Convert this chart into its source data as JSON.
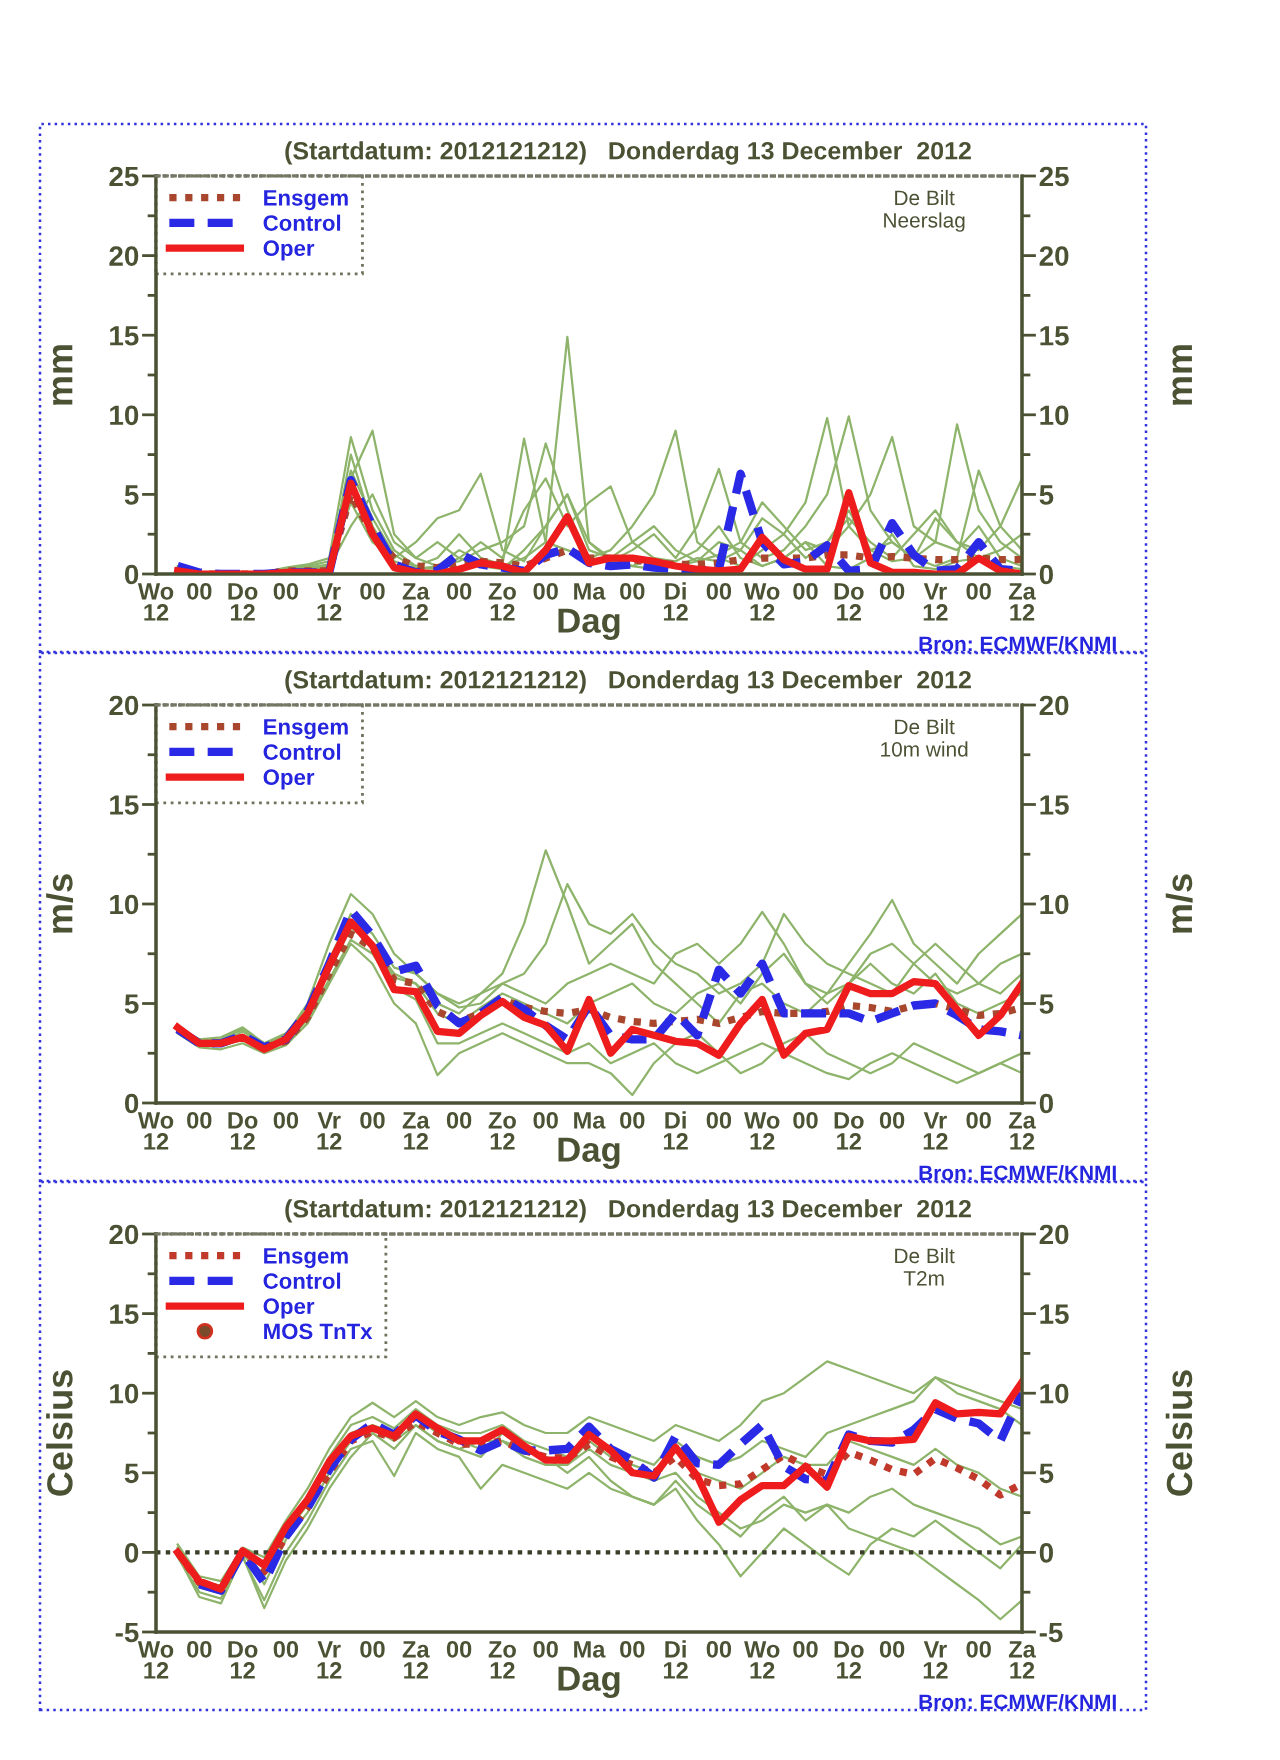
{
  "chart_data": [
    {
      "type": "line",
      "title": "(Startdatum: 2012121212)   Donderdag 13 December  2012",
      "xlabel": "Dag",
      "ylabel": "mm",
      "y2label": "mm",
      "annotations": [
        "De Bilt\nNeerslag",
        "Bron: ECMWF/KNMI"
      ],
      "xlim": [
        "2012-12-12T12:00",
        "2012-12-22T12:00"
      ],
      "xticks": [
        {
          "value": "2012-12-12T12:00",
          "label": "Wo\n12"
        },
        {
          "value": "2012-12-13T00:00",
          "label": "00"
        },
        {
          "value": "2012-12-13T12:00",
          "label": "Do\n12"
        },
        {
          "value": "2012-12-14T00:00",
          "label": "00"
        },
        {
          "value": "2012-12-14T12:00",
          "label": "Vr\n12"
        },
        {
          "value": "2012-12-15T00:00",
          "label": "00"
        },
        {
          "value": "2012-12-15T12:00",
          "label": "Za\n12"
        },
        {
          "value": "2012-12-16T00:00",
          "label": "00"
        },
        {
          "value": "2012-12-16T12:00",
          "label": "Zo\n12"
        },
        {
          "value": "2012-12-17T00:00",
          "label": "00"
        },
        {
          "value": "2012-12-17T12:00",
          "label": "Ma"
        },
        {
          "value": "2012-12-18T00:00",
          "label": "00"
        },
        {
          "value": "2012-12-18T12:00",
          "label": "Di\n12"
        },
        {
          "value": "2012-12-19T00:00",
          "label": "00"
        },
        {
          "value": "2012-12-19T12:00",
          "label": "Wo\n12"
        },
        {
          "value": "2012-12-20T00:00",
          "label": "00"
        },
        {
          "value": "2012-12-20T12:00",
          "label": "Do\n12"
        },
        {
          "value": "2012-12-21T00:00",
          "label": "00"
        },
        {
          "value": "2012-12-21T12:00",
          "label": "Vr\n12"
        },
        {
          "value": "2012-12-22T00:00",
          "label": "00"
        },
        {
          "value": "2012-12-22T12:00",
          "label": "Za\n12"
        }
      ],
      "ylim": [
        0,
        25
      ],
      "yticks": [
        0,
        {
          "value": 2.5,
          "label": null
        },
        5,
        {
          "value": 7.5,
          "label": null
        },
        10,
        {
          "value": 12.5,
          "label": null
        },
        15,
        {
          "value": 17.5,
          "label": null
        },
        20,
        {
          "value": 22.5,
          "label": null
        },
        25
      ],
      "y2lim": [
        0,
        25
      ],
      "y2ticks": [
        0,
        {
          "value": 2.5,
          "label": null
        },
        5,
        {
          "value": 7.5,
          "label": null
        },
        10,
        {
          "value": 12.5,
          "label": null
        },
        15,
        {
          "value": 17.5,
          "label": null
        },
        20,
        {
          "value": 22.5,
          "label": null
        },
        25
      ],
      "legend": "top left",
      "x": [
        "2012-12-12T18:00",
        "2012-12-13T00:00",
        "2012-12-13T06:00",
        "2012-12-13T12:00",
        "2012-12-13T18:00",
        "2012-12-14T00:00",
        "2012-12-14T06:00",
        "2012-12-14T12:00",
        "2012-12-14T18:00",
        "2012-12-15T00:00",
        "2012-12-15T06:00",
        "2012-12-15T12:00",
        "2012-12-15T18:00",
        "2012-12-16T00:00",
        "2012-12-16T06:00",
        "2012-12-16T12:00",
        "2012-12-16T18:00",
        "2012-12-17T00:00",
        "2012-12-17T06:00",
        "2012-12-17T12:00",
        "2012-12-17T18:00",
        "2012-12-18T00:00",
        "2012-12-18T06:00",
        "2012-12-18T12:00",
        "2012-12-18T18:00",
        "2012-12-19T00:00",
        "2012-12-19T06:00",
        "2012-12-19T12:00",
        "2012-12-19T18:00",
        "2012-12-20T00:00",
        "2012-12-20T06:00",
        "2012-12-20T12:00",
        "2012-12-20T18:00",
        "2012-12-21T00:00",
        "2012-12-21T06:00",
        "2012-12-21T12:00",
        "2012-12-21T18:00",
        "2012-12-22T00:00",
        "2012-12-22T06:00",
        "2012-12-22T12:00"
      ],
      "series": [
        {
          "color": "#8db46a",
          "line_style": "solid",
          "values": [
            0.3,
            0,
            0,
            0,
            0,
            0.2,
            0.3,
            0.3,
            7.5,
            3.0,
            0.8,
            0.3,
            0.5,
            1.5,
            0.8,
            0.5,
            1.0,
            2.0,
            14.9,
            2.0,
            0.8,
            0.5,
            0.3,
            0.5,
            1.0,
            0.8,
            1.5,
            0.5,
            1.0,
            2.0,
            0.5,
            0.3,
            1.0,
            2.5,
            0.5,
            0.3,
            0.8,
            1.0,
            0.5,
            0.3
          ]
        },
        {
          "color": "#8db46a",
          "line_style": "solid",
          "values": [
            0.5,
            0.1,
            0,
            0,
            0,
            0.3,
            0.5,
            0.8,
            6.0,
            9.0,
            2.5,
            1.0,
            2.0,
            1.0,
            0.5,
            0.3,
            1.5,
            3.0,
            5.0,
            1.5,
            1.0,
            2.0,
            3.0,
            1.5,
            0.8,
            2.0,
            1.5,
            3.5,
            2.5,
            4.5,
            9.8,
            3.0,
            1.5,
            2.0,
            1.0,
            3.5,
            2.0,
            1.0,
            1.5,
            2.5
          ]
        },
        {
          "color": "#8db46a",
          "line_style": "solid",
          "values": [
            0.2,
            0,
            0,
            0,
            0.1,
            0.4,
            0.6,
            1.0,
            8.6,
            4.0,
            1.5,
            0.5,
            1.0,
            2.5,
            1.0,
            0.6,
            8.5,
            2.0,
            1.5,
            1.0,
            1.5,
            3.0,
            5.0,
            9.0,
            2.0,
            1.0,
            0.5,
            1.5,
            2.5,
            1.0,
            2.0,
            4.0,
            1.5,
            0.8,
            1.0,
            2.0,
            1.5,
            3.0,
            1.0,
            0.5
          ]
        },
        {
          "color": "#8db46a",
          "line_style": "solid",
          "values": [
            null,
            null,
            null,
            0,
            0,
            0.2,
            0.3,
            0.5,
            4.5,
            2.0,
            1.0,
            2.0,
            3.5,
            4.0,
            6.3,
            1.5,
            0.8,
            3.0,
            5.0,
            2.0,
            1.0,
            0.5,
            1.0,
            0.8,
            1.5,
            3.0,
            1.0,
            0.5,
            1.0,
            2.0,
            1.5,
            3.0,
            5.0,
            8.6,
            3.0,
            2.0,
            9.4,
            4.0,
            2.0,
            1.0
          ]
        },
        {
          "color": "#8db46a",
          "line_style": "solid",
          "values": [
            0.2,
            0,
            0,
            0,
            0,
            0.1,
            0.2,
            0.4,
            3.0,
            5.0,
            2.0,
            1.0,
            0.5,
            0.8,
            1.5,
            2.0,
            3.0,
            8.2,
            4.0,
            1.0,
            0.8,
            1.5,
            2.5,
            1.0,
            3.0,
            6.6,
            2.0,
            1.0,
            1.5,
            3.0,
            5.0,
            9.9,
            4.0,
            2.0,
            1.0,
            0.5,
            1.0,
            6.5,
            3.0,
            1.5
          ]
        },
        {
          "color": "#8db46a",
          "line_style": "solid",
          "values": [
            0.3,
            0.1,
            0,
            0,
            0,
            0.2,
            0.4,
            0.6,
            6.5,
            3.5,
            1.2,
            0.4,
            0.3,
            1.0,
            2.0,
            1.0,
            4.0,
            6.0,
            3.0,
            4.5,
            5.5,
            2.0,
            1.0,
            0.5,
            0.8,
            1.2,
            2.0,
            4.5,
            3.0,
            1.5,
            2.0,
            3.5,
            2.0,
            1.0,
            2.5,
            4.0,
            2.0,
            1.5,
            3.0,
            6.0
          ]
        },
        {
          "name": "Ensgem",
          "color": "#a8472e",
          "line_style": "dotted",
          "values": [
            0.2,
            0,
            0,
            0,
            0,
            0.2,
            0.2,
            0.2,
            5.0,
            2.5,
            1.0,
            0.5,
            0.4,
            0.7,
            0.8,
            0.7,
            0.5,
            1.0,
            1.5,
            1.0,
            1.0,
            0.9,
            0.7,
            0.6,
            0.6,
            0.7,
            0.9,
            1.0,
            1.0,
            1.0,
            1.2,
            1.2,
            1.0,
            1.1,
            1.0,
            0.9,
            0.9,
            1.0,
            0.9,
            0.9
          ]
        },
        {
          "name": "Control",
          "color": "#2a2ae6",
          "line_style": "dashed",
          "values": [
            0.5,
            0.1,
            0,
            0,
            0,
            0.1,
            0.1,
            0.1,
            5.9,
            3.0,
            0.6,
            0.1,
            0.2,
            1.3,
            0.6,
            0.4,
            0.2,
            1.2,
            1.6,
            0.7,
            0.5,
            0.6,
            0.4,
            0.3,
            0.2,
            0.3,
            6.3,
            2.0,
            0.6,
            0.8,
            1.8,
            0.2,
            0.3,
            3.2,
            1.2,
            0.2,
            0.3,
            2.0,
            0.3,
            0.2
          ]
        },
        {
          "name": "Oper",
          "color": "#ee1c1c",
          "line_style": "solid",
          "values": [
            0.2,
            0,
            0,
            0,
            0,
            0.1,
            0.1,
            0.1,
            5.7,
            2.5,
            0.4,
            0.1,
            0,
            0.3,
            0.7,
            0.5,
            0.1,
            1.5,
            3.6,
            0.7,
            1.0,
            1.0,
            0.8,
            0.5,
            0.3,
            0.2,
            0.3,
            2.3,
            0.9,
            0.3,
            0.3,
            5.1,
            0.7,
            0.1,
            0.1,
            0,
            0,
            1.0,
            0.2,
            0
          ]
        }
      ]
    },
    {
      "type": "line",
      "title": "(Startdatum: 2012121212)   Donderdag 13 December  2012",
      "xlabel": "Dag",
      "ylabel": "m/s",
      "y2label": "m/s",
      "annotations": [
        "De Bilt\n10m wind",
        "Bron: ECMWF/KNMI"
      ],
      "xlim": [
        "2012-12-12T12:00",
        "2012-12-22T12:00"
      ],
      "xticks": [
        {
          "value": "2012-12-12T12:00",
          "label": "Wo\n12"
        },
        {
          "value": "2012-12-13T00:00",
          "label": "00"
        },
        {
          "value": "2012-12-13T12:00",
          "label": "Do\n12"
        },
        {
          "value": "2012-12-14T00:00",
          "label": "00"
        },
        {
          "value": "2012-12-14T12:00",
          "label": "Vr\n12"
        },
        {
          "value": "2012-12-15T00:00",
          "label": "00"
        },
        {
          "value": "2012-12-15T12:00",
          "label": "Za\n12"
        },
        {
          "value": "2012-12-16T00:00",
          "label": "00"
        },
        {
          "value": "2012-12-16T12:00",
          "label": "Zo\n12"
        },
        {
          "value": "2012-12-17T00:00",
          "label": "00"
        },
        {
          "value": "2012-12-17T12:00",
          "label": "Ma"
        },
        {
          "value": "2012-12-18T00:00",
          "label": "00"
        },
        {
          "value": "2012-12-18T12:00",
          "label": "Di\n12"
        },
        {
          "value": "2012-12-19T00:00",
          "label": "00"
        },
        {
          "value": "2012-12-19T12:00",
          "label": "Wo\n12"
        },
        {
          "value": "2012-12-20T00:00",
          "label": "00"
        },
        {
          "value": "2012-12-20T12:00",
          "label": "Do\n12"
        },
        {
          "value": "2012-12-21T00:00",
          "label": "00"
        },
        {
          "value": "2012-12-21T12:00",
          "label": "Vr\n12"
        },
        {
          "value": "2012-12-22T00:00",
          "label": "00"
        },
        {
          "value": "2012-12-22T12:00",
          "label": "Za\n12"
        }
      ],
      "ylim": [
        0,
        20
      ],
      "yticks": [
        0,
        {
          "value": 2.5,
          "label": null
        },
        5,
        {
          "value": 7.5,
          "label": null
        },
        10,
        {
          "value": 12.5,
          "label": null
        },
        15,
        {
          "value": 17.5,
          "label": null
        },
        20
      ],
      "y2lim": [
        0,
        20
      ],
      "y2ticks": [
        0,
        {
          "value": 2.5,
          "label": null
        },
        5,
        {
          "value": 7.5,
          "label": null
        },
        10,
        {
          "value": 12.5,
          "label": null
        },
        15,
        {
          "value": 17.5,
          "label": null
        },
        20
      ],
      "legend": "top left",
      "x": [
        "2012-12-12T18:00",
        "2012-12-13T00:00",
        "2012-12-13T06:00",
        "2012-12-13T12:00",
        "2012-12-13T18:00",
        "2012-12-14T00:00",
        "2012-12-14T06:00",
        "2012-12-14T12:00",
        "2012-12-14T18:00",
        "2012-12-15T00:00",
        "2012-12-15T06:00",
        "2012-12-15T12:00",
        "2012-12-15T18:00",
        "2012-12-16T00:00",
        "2012-12-16T06:00",
        "2012-12-16T12:00",
        "2012-12-16T18:00",
        "2012-12-17T00:00",
        "2012-12-17T06:00",
        "2012-12-17T12:00",
        "2012-12-17T18:00",
        "2012-12-18T00:00",
        "2012-12-18T06:00",
        "2012-12-18T12:00",
        "2012-12-18T18:00",
        "2012-12-19T00:00",
        "2012-12-19T06:00",
        "2012-12-19T12:00",
        "2012-12-19T18:00",
        "2012-12-20T00:00",
        "2012-12-20T06:00",
        "2012-12-20T12:00",
        "2012-12-20T18:00",
        "2012-12-21T00:00",
        "2012-12-21T06:00",
        "2012-12-21T12:00",
        "2012-12-21T18:00",
        "2012-12-22T00:00",
        "2012-12-22T06:00",
        "2012-12-22T12:00"
      ],
      "series": [
        {
          "color": "#8db46a",
          "line_style": "solid",
          "values": [
            3.8,
            3.2,
            3.3,
            3.8,
            3.0,
            3.5,
            4.8,
            7.0,
            9.0,
            8.0,
            6.5,
            6.0,
            5.0,
            4.5,
            5.5,
            6.5,
            9.0,
            12.7,
            10.0,
            7.0,
            8.0,
            9.0,
            7.0,
            6.0,
            5.0,
            4.0,
            5.5,
            6.0,
            5.0,
            4.5,
            5.5,
            6.0,
            7.0,
            6.0,
            5.5,
            6.5,
            5.0,
            4.5,
            5.0,
            5.5
          ]
        },
        {
          "color": "#8db46a",
          "line_style": "solid",
          "values": [
            3.9,
            3.1,
            3.0,
            3.6,
            2.9,
            3.4,
            5.0,
            8.0,
            10.5,
            9.5,
            7.5,
            6.5,
            5.5,
            4.8,
            5.0,
            6.0,
            5.5,
            5.0,
            6.0,
            6.5,
            7.0,
            6.5,
            6.0,
            7.5,
            8.0,
            7.0,
            8.0,
            9.6,
            8.0,
            6.0,
            5.0,
            6.0,
            7.5,
            8.0,
            7.0,
            6.0,
            5.5,
            6.0,
            7.0,
            7.5
          ]
        },
        {
          "color": "#8db46a",
          "line_style": "solid",
          "values": [
            3.5,
            2.8,
            2.7,
            3.0,
            2.5,
            2.9,
            4.0,
            6.0,
            8.0,
            7.0,
            5.0,
            4.0,
            1.4,
            2.5,
            3.0,
            3.5,
            3.0,
            2.5,
            2.0,
            2.0,
            1.5,
            0.4,
            2.0,
            3.0,
            3.5,
            2.5,
            1.5,
            2.0,
            3.0,
            3.5,
            2.5,
            2.0,
            1.5,
            2.0,
            3.0,
            2.5,
            2.0,
            1.5,
            2.0,
            2.5
          ]
        },
        {
          "color": "#8db46a",
          "line_style": "solid",
          "values": [
            3.7,
            3.0,
            3.1,
            3.4,
            2.8,
            3.2,
            4.4,
            6.6,
            8.8,
            8.0,
            6.3,
            6.0,
            4.5,
            4.0,
            4.8,
            5.5,
            5.0,
            4.5,
            4.0,
            5.0,
            5.5,
            6.0,
            5.0,
            4.5,
            5.5,
            6.0,
            5.0,
            6.5,
            7.5,
            6.0,
            5.5,
            7.0,
            8.5,
            10.2,
            8.0,
            7.0,
            6.0,
            7.5,
            8.5,
            9.5
          ]
        },
        {
          "color": "#8db46a",
          "line_style": "solid",
          "values": [
            3.6,
            2.9,
            2.9,
            3.2,
            2.7,
            3.0,
            4.2,
            6.2,
            8.2,
            7.5,
            5.8,
            5.2,
            3.0,
            3.0,
            3.5,
            4.0,
            3.5,
            3.0,
            2.5,
            3.0,
            2.0,
            2.5,
            3.0,
            2.0,
            1.5,
            2.0,
            2.5,
            3.0,
            2.5,
            2.0,
            1.5,
            1.2,
            2.0,
            2.5,
            2.0,
            1.5,
            1.0,
            1.5,
            2.0,
            1.5
          ]
        },
        {
          "color": "#8db46a",
          "line_style": "solid",
          "values": [
            3.8,
            3.1,
            3.2,
            3.7,
            3.0,
            3.4,
            4.6,
            7.2,
            9.5,
            8.5,
            6.8,
            6.5,
            5.5,
            5.0,
            5.5,
            6.0,
            6.5,
            8.0,
            11.0,
            9.0,
            8.5,
            9.5,
            8.0,
            7.0,
            6.5,
            5.5,
            6.0,
            7.0,
            9.5,
            8.0,
            7.0,
            6.5,
            6.0,
            5.5,
            7.0,
            8.0,
            7.0,
            6.0,
            5.5,
            6.5
          ]
        },
        {
          "name": "Ensgem",
          "color": "#a8472e",
          "line_style": "dotted",
          "values": [
            3.7,
            3.0,
            3.0,
            3.3,
            2.8,
            3.1,
            4.3,
            6.5,
            8.5,
            7.8,
            6.2,
            6.0,
            4.6,
            4.1,
            4.5,
            5.2,
            4.8,
            4.6,
            4.5,
            4.7,
            4.3,
            4.1,
            4.0,
            4.1,
            4.2,
            4.0,
            4.3,
            4.6,
            4.5,
            4.5,
            4.6,
            4.9,
            4.8,
            4.6,
            4.9,
            5.0,
            4.7,
            4.4,
            4.5,
            4.8
          ]
        },
        {
          "name": "Control",
          "color": "#2a2ae6",
          "line_style": "dashed",
          "values": [
            3.7,
            3.0,
            3.0,
            3.4,
            2.8,
            3.2,
            4.6,
            7.0,
            9.7,
            8.4,
            6.6,
            6.9,
            4.9,
            4.0,
            4.5,
            5.3,
            4.7,
            3.9,
            3.2,
            4.9,
            3.4,
            3.2,
            3.2,
            4.5,
            3.4,
            6.7,
            5.5,
            7.0,
            4.5,
            4.5,
            4.5,
            4.5,
            4.1,
            4.5,
            4.9,
            5.0,
            4.4,
            3.7,
            3.6,
            3.4
          ]
        },
        {
          "name": "Oper",
          "color": "#ee1c1c",
          "line_style": "solid",
          "values": [
            3.8,
            3.0,
            3.0,
            3.3,
            2.7,
            3.2,
            4.5,
            6.9,
            9.1,
            7.9,
            5.7,
            5.6,
            3.6,
            3.5,
            4.4,
            5.1,
            4.3,
            3.9,
            2.6,
            5.2,
            2.5,
            3.7,
            3.4,
            3.1,
            3.0,
            2.4,
            4.0,
            5.2,
            2.4,
            3.5,
            3.7,
            5.9,
            5.5,
            5.5,
            6.1,
            6.0,
            4.7,
            3.4,
            4.4,
            6.0
          ]
        }
      ]
    },
    {
      "type": "line",
      "title": "(Startdatum: 2012121212)   Donderdag 13 December  2012",
      "xlabel": "Dag",
      "ylabel": "Celsius",
      "y2label": "Celsius",
      "annotations": [
        "De Bilt\nT2m",
        "Bron: ECMWF/KNMI"
      ],
      "xlim": [
        "2012-12-12T12:00",
        "2012-12-22T12:00"
      ],
      "xticks": [
        {
          "value": "2012-12-12T12:00",
          "label": "Wo\n12"
        },
        {
          "value": "2012-12-13T00:00",
          "label": "00"
        },
        {
          "value": "2012-12-13T12:00",
          "label": "Do\n12"
        },
        {
          "value": "2012-12-14T00:00",
          "label": "00"
        },
        {
          "value": "2012-12-14T12:00",
          "label": "Vr\n12"
        },
        {
          "value": "2012-12-15T00:00",
          "label": "00"
        },
        {
          "value": "2012-12-15T12:00",
          "label": "Za\n12"
        },
        {
          "value": "2012-12-16T00:00",
          "label": "00"
        },
        {
          "value": "2012-12-16T12:00",
          "label": "Zo\n12"
        },
        {
          "value": "2012-12-17T00:00",
          "label": "00"
        },
        {
          "value": "2012-12-17T12:00",
          "label": "Ma"
        },
        {
          "value": "2012-12-18T00:00",
          "label": "00"
        },
        {
          "value": "2012-12-18T12:00",
          "label": "Di\n12"
        },
        {
          "value": "2012-12-19T00:00",
          "label": "00"
        },
        {
          "value": "2012-12-19T12:00",
          "label": "Wo\n12"
        },
        {
          "value": "2012-12-20T00:00",
          "label": "00"
        },
        {
          "value": "2012-12-20T12:00",
          "label": "Do\n12"
        },
        {
          "value": "2012-12-21T00:00",
          "label": "00"
        },
        {
          "value": "2012-12-21T12:00",
          "label": "Vr\n12"
        },
        {
          "value": "2012-12-22T00:00",
          "label": "00"
        },
        {
          "value": "2012-12-22T12:00",
          "label": "Za\n12"
        }
      ],
      "ylim": [
        -5,
        20
      ],
      "yticks": [
        -5,
        {
          "value": -2.5,
          "label": null
        },
        0,
        {
          "value": 2.5,
          "label": null
        },
        5,
        {
          "value": 7.5,
          "label": null
        },
        10,
        {
          "value": 12.5,
          "label": null
        },
        15,
        {
          "value": 17.5,
          "label": null
        },
        20
      ],
      "y2lim": [
        -5,
        20
      ],
      "y2ticks": [
        -5,
        {
          "value": -2.5,
          "label": null
        },
        0,
        {
          "value": 2.5,
          "label": null
        },
        5,
        {
          "value": 7.5,
          "label": null
        },
        10,
        {
          "value": 12.5,
          "label": null
        },
        15,
        {
          "value": 17.5,
          "label": null
        },
        20
      ],
      "legend": "top left",
      "ref_lines": [
        {
          "axis": "y",
          "value": 0,
          "color": "#3a3f2a",
          "line_style": "dotted"
        }
      ],
      "x": [
        "2012-12-12T18:00",
        "2012-12-13T00:00",
        "2012-12-13T06:00",
        "2012-12-13T12:00",
        "2012-12-13T18:00",
        "2012-12-14T00:00",
        "2012-12-14T06:00",
        "2012-12-14T12:00",
        "2012-12-14T18:00",
        "2012-12-15T00:00",
        "2012-12-15T06:00",
        "2012-12-15T12:00",
        "2012-12-15T18:00",
        "2012-12-16T00:00",
        "2012-12-16T06:00",
        "2012-12-16T12:00",
        "2012-12-16T18:00",
        "2012-12-17T00:00",
        "2012-12-17T06:00",
        "2012-12-17T12:00",
        "2012-12-17T18:00",
        "2012-12-18T00:00",
        "2012-12-18T06:00",
        "2012-12-18T12:00",
        "2012-12-18T18:00",
        "2012-12-19T00:00",
        "2012-12-19T06:00",
        "2012-12-19T12:00",
        "2012-12-19T18:00",
        "2012-12-20T00:00",
        "2012-12-20T06:00",
        "2012-12-20T12:00",
        "2012-12-20T18:00",
        "2012-12-21T00:00",
        "2012-12-21T06:00",
        "2012-12-21T12:00",
        "2012-12-21T18:00",
        "2012-12-22T00:00",
        "2012-12-22T06:00",
        "2012-12-22T12:00"
      ],
      "series": [
        {
          "color": "#8db46a",
          "line_style": "solid",
          "values": [
            0.5,
            -1.5,
            -1.8,
            0.3,
            -0.3,
            2.0,
            4.0,
            6.5,
            8.5,
            9.4,
            8.5,
            9.5,
            8.5,
            8.0,
            8.5,
            8.8,
            8.0,
            7.5,
            7.5,
            8.5,
            8.0,
            7.5,
            7.0,
            8.0,
            7.5,
            7.0,
            8.0,
            9.5,
            10.0,
            11.0,
            12.0,
            11.5,
            11.0,
            10.5,
            10.0,
            11.0,
            10.5,
            10.0,
            9.5,
            9.0
          ]
        },
        {
          "color": "#8db46a",
          "line_style": "solid",
          "values": [
            -0.3,
            -2.5,
            -2.9,
            -0.3,
            -3.0,
            0.0,
            2.0,
            4.5,
            6.5,
            7.0,
            4.8,
            7.5,
            6.5,
            6.0,
            4.0,
            5.5,
            5.0,
            4.5,
            4.0,
            5.0,
            4.0,
            3.5,
            3.0,
            4.5,
            3.0,
            2.0,
            1.0,
            2.5,
            3.5,
            2.0,
            3.0,
            2.5,
            3.5,
            4.0,
            3.0,
            2.5,
            2.0,
            1.5,
            0.5,
            1.0
          ]
        },
        {
          "color": "#8db46a",
          "line_style": "solid",
          "values": [
            0.2,
            -2.2,
            -2.6,
            0.0,
            -2.0,
            0.8,
            2.5,
            5.0,
            7.0,
            7.8,
            7.0,
            8.0,
            7.0,
            6.5,
            7.0,
            7.0,
            6.0,
            5.5,
            5.5,
            6.5,
            5.5,
            5.0,
            4.5,
            5.0,
            3.5,
            2.5,
            1.5,
            2.0,
            3.0,
            2.5,
            3.0,
            1.5,
            1.0,
            0.5,
            0.0,
            -1.0,
            -2.0,
            -3.0,
            -4.2,
            -3.0
          ]
        },
        {
          "color": "#8db46a",
          "line_style": "solid",
          "values": [
            0.0,
            -2.0,
            -2.4,
            0.2,
            -1.5,
            1.2,
            3.0,
            5.5,
            7.5,
            8.0,
            7.5,
            8.5,
            7.5,
            7.0,
            6.5,
            7.0,
            6.5,
            6.0,
            5.0,
            6.0,
            4.5,
            3.5,
            3.0,
            4.0,
            2.0,
            0.5,
            -1.5,
            0.0,
            1.5,
            0.5,
            -0.5,
            -1.4,
            0.5,
            1.5,
            1.0,
            2.0,
            1.0,
            0.0,
            -1.0,
            0.5
          ]
        },
        {
          "color": "#8db46a",
          "line_style": "solid",
          "values": [
            0.3,
            -1.8,
            -2.1,
            0.1,
            -0.8,
            1.5,
            3.5,
            6.0,
            8.0,
            8.5,
            7.8,
            9.0,
            8.0,
            7.5,
            7.5,
            8.0,
            7.0,
            6.5,
            6.0,
            7.5,
            6.5,
            6.0,
            5.5,
            7.0,
            6.0,
            5.5,
            6.0,
            7.0,
            6.5,
            6.0,
            7.5,
            8.0,
            8.5,
            9.0,
            9.5,
            11.0,
            10.0,
            9.5,
            9.0,
            8.0
          ]
        },
        {
          "color": "#8db46a",
          "line_style": "solid",
          "values": [
            -0.2,
            -2.8,
            -3.2,
            -0.2,
            -3.5,
            -0.5,
            1.5,
            4.0,
            6.0,
            7.5,
            6.5,
            8.0,
            7.0,
            6.5,
            6.0,
            7.5,
            6.5,
            6.0,
            5.5,
            7.0,
            6.0,
            5.5,
            5.0,
            6.5,
            5.0,
            4.5,
            4.0,
            5.0,
            6.0,
            5.5,
            5.5,
            7.0,
            6.5,
            6.0,
            5.5,
            6.5,
            5.5,
            5.0,
            4.0,
            3.5
          ]
        },
        {
          "name": "Ensgem",
          "color": "#c0392b",
          "line_style": "dotted",
          "values": [
            0,
            -1.9,
            -2.3,
            0,
            -1.2,
            1.0,
            2.8,
            5.0,
            7.0,
            7.6,
            7.2,
            8.2,
            7.5,
            6.8,
            6.8,
            7.0,
            6.4,
            6.0,
            5.9,
            6.8,
            6.0,
            5.5,
            5.0,
            6.0,
            4.6,
            4.2,
            4.3,
            5.2,
            6.1,
            5.4,
            4.9,
            6.3,
            5.8,
            5.2,
            4.9,
            5.9,
            5.3,
            4.6,
            3.6,
            4.3
          ]
        },
        {
          "name": "Control",
          "color": "#2a2ae6",
          "line_style": "dashed",
          "values": [
            null,
            -2.0,
            -2.4,
            0,
            -1.9,
            1.0,
            2.8,
            5.2,
            7.1,
            8.1,
            7.4,
            8.6,
            7.6,
            7.1,
            6.4,
            7.0,
            6.4,
            6.4,
            6.5,
            7.9,
            6.5,
            5.8,
            4.7,
            7.3,
            5.6,
            5.5,
            6.8,
            8.0,
            5.4,
            4.6,
            4.5,
            7.4,
            7.0,
            6.9,
            7.7,
            9.0,
            8.4,
            8.1,
            7.0,
            10.0
          ]
        },
        {
          "name": "Oper",
          "color": "#ee1c1c",
          "line_style": "solid",
          "values": [
            0,
            -1.8,
            -2.3,
            0.1,
            -0.8,
            1.6,
            3.3,
            5.7,
            7.3,
            7.8,
            7.3,
            8.7,
            7.8,
            7.0,
            7.0,
            7.7,
            6.7,
            5.8,
            5.8,
            7.4,
            6.4,
            5.0,
            4.8,
            6.6,
            4.8,
            1.9,
            3.3,
            4.2,
            4.2,
            5.4,
            4.1,
            7.3,
            7.0,
            7.0,
            7.1,
            9.4,
            8.7,
            8.8,
            8.7,
            10.7
          ]
        },
        {
          "name": "MOS TnTx",
          "type": "scatter",
          "marker": "circle",
          "color": "#7a4a2a",
          "values": [
            null,
            null,
            null,
            null,
            null,
            null,
            null,
            null,
            null,
            null,
            null,
            null,
            null,
            null,
            null,
            null,
            null,
            null,
            null,
            null,
            null,
            null,
            null,
            null,
            null,
            null,
            null,
            null,
            null,
            null,
            null,
            null,
            null,
            null,
            null,
            null,
            null,
            null,
            null,
            null
          ]
        }
      ]
    }
  ]
}
